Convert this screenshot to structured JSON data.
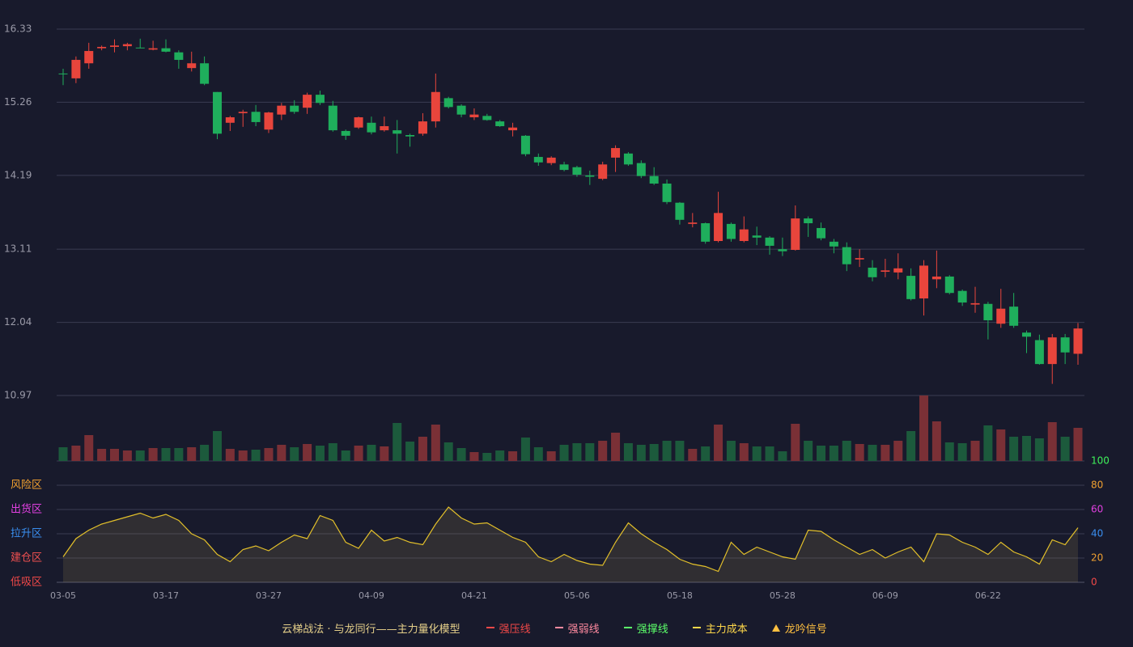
{
  "chart_data": {
    "type": "candlestick",
    "categories": [
      "03-05",
      null,
      null,
      null,
      null,
      null,
      null,
      null,
      "03-17",
      null,
      null,
      null,
      null,
      null,
      null,
      null,
      "03-27",
      null,
      null,
      null,
      null,
      null,
      null,
      null,
      "04-09",
      null,
      null,
      null,
      null,
      null,
      null,
      null,
      "04-21",
      null,
      null,
      null,
      null,
      null,
      null,
      null,
      "05-06",
      null,
      null,
      null,
      null,
      null,
      null,
      null,
      "05-18",
      null,
      null,
      null,
      null,
      null,
      null,
      null,
      "05-28",
      null,
      null,
      null,
      null,
      null,
      null,
      null,
      "06-09",
      null,
      null,
      null,
      null,
      null,
      null,
      null,
      "06-22",
      null,
      null,
      null,
      null,
      null,
      null,
      null
    ],
    "open": [
      15.68,
      15.61,
      15.83,
      16.05,
      16.07,
      16.08,
      16.06,
      16.03,
      16.05,
      15.99,
      15.76,
      15.83,
      15.41,
      14.96,
      15.1,
      15.12,
      14.86,
      15.08,
      15.21,
      15.18,
      15.37,
      15.21,
      14.84,
      14.89,
      14.96,
      14.85,
      14.85,
      14.78,
      14.8,
      14.98,
      15.32,
      15.21,
      15.04,
      15.06,
      14.98,
      14.85,
      14.77,
      14.46,
      14.37,
      14.35,
      14.31,
      14.19,
      14.14,
      14.45,
      14.51,
      14.37,
      14.18,
      14.07,
      13.79,
      13.48,
      13.49,
      13.23,
      13.48,
      13.23,
      13.31,
      13.28,
      13.11,
      13.1,
      13.56,
      13.42,
      13.22,
      13.14,
      12.96,
      12.84,
      12.78,
      12.77,
      12.72,
      12.39,
      12.67,
      12.71,
      12.5,
      12.3,
      12.31,
      12.02,
      12.27,
      11.89,
      11.78,
      11.43,
      11.82,
      11.58
    ],
    "close": [
      15.67,
      15.88,
      16.01,
      16.07,
      16.09,
      16.11,
      16.05,
      16.05,
      16.0,
      15.88,
      15.83,
      15.53,
      14.8,
      15.04,
      15.12,
      14.97,
      15.11,
      15.21,
      15.12,
      15.37,
      15.25,
      14.85,
      14.77,
      15.04,
      14.82,
      14.91,
      14.8,
      14.76,
      14.98,
      15.41,
      15.19,
      15.08,
      15.08,
      15.0,
      14.91,
      14.89,
      14.5,
      14.38,
      14.45,
      14.27,
      14.2,
      14.17,
      14.35,
      14.59,
      14.35,
      14.18,
      14.07,
      13.8,
      13.54,
      13.5,
      13.22,
      13.64,
      13.26,
      13.4,
      13.28,
      13.16,
      13.08,
      13.56,
      13.49,
      13.27,
      13.15,
      12.89,
      12.98,
      12.7,
      12.8,
      12.83,
      12.38,
      12.87,
      12.71,
      12.47,
      12.33,
      12.32,
      12.07,
      12.24,
      11.99,
      11.83,
      11.43,
      11.82,
      11.6,
      11.95
    ],
    "high": [
      15.75,
      15.93,
      16.13,
      16.09,
      16.18,
      16.13,
      16.19,
      16.16,
      16.18,
      16.02,
      16.0,
      15.93,
      15.41,
      15.06,
      15.15,
      15.22,
      15.12,
      15.25,
      15.29,
      15.4,
      15.43,
      15.28,
      14.86,
      15.05,
      15.05,
      15.05,
      15.0,
      14.8,
      15.1,
      15.68,
      15.34,
      15.23,
      15.17,
      15.09,
      15.0,
      14.96,
      14.78,
      14.51,
      14.47,
      14.39,
      14.33,
      14.26,
      14.39,
      14.63,
      14.53,
      14.41,
      14.31,
      14.13,
      13.8,
      13.64,
      13.5,
      13.95,
      13.5,
      13.59,
      13.44,
      13.3,
      13.28,
      13.75,
      13.59,
      13.5,
      13.26,
      13.21,
      13.11,
      12.95,
      12.97,
      13.05,
      12.83,
      12.95,
      13.09,
      12.73,
      12.52,
      12.56,
      12.34,
      12.53,
      12.47,
      11.92,
      11.86,
      11.87,
      11.87,
      12.03
    ],
    "low": [
      15.51,
      15.54,
      15.75,
      16.02,
      15.99,
      16.02,
      16.05,
      16.02,
      15.99,
      15.75,
      15.71,
      15.51,
      14.72,
      14.84,
      14.9,
      14.91,
      14.81,
      15.0,
      15.09,
      15.09,
      15.22,
      14.83,
      14.71,
      14.87,
      14.79,
      14.83,
      14.51,
      14.61,
      14.77,
      14.89,
      15.17,
      15.04,
      15.0,
      14.99,
      14.9,
      14.76,
      14.47,
      14.33,
      14.34,
      14.25,
      14.17,
      14.05,
      14.12,
      14.24,
      14.33,
      14.15,
      14.05,
      13.77,
      13.47,
      13.43,
      13.19,
      13.21,
      13.22,
      13.21,
      13.17,
      13.03,
      13.01,
      13.09,
      13.29,
      13.24,
      13.05,
      12.79,
      12.85,
      12.64,
      12.7,
      12.67,
      12.36,
      12.14,
      12.54,
      12.45,
      12.28,
      12.18,
      11.79,
      11.96,
      11.96,
      11.59,
      11.42,
      11.14,
      11.43,
      11.42
    ],
    "volume": [
      17,
      19,
      32,
      15,
      15,
      13,
      13,
      16,
      16,
      16,
      17,
      20,
      37,
      15,
      13,
      14,
      16,
      20,
      17,
      21,
      19,
      22,
      13,
      19,
      20,
      18,
      47,
      24,
      30,
      45,
      23,
      16,
      11,
      10,
      13,
      12,
      29,
      17,
      12,
      20,
      22,
      22,
      25,
      35,
      22,
      20,
      21,
      25,
      25,
      15,
      18,
      45,
      25,
      22,
      18,
      18,
      12,
      46,
      25,
      19,
      19,
      25,
      21,
      20,
      20,
      25,
      37,
      81,
      49,
      23,
      22,
      25,
      44,
      39,
      30,
      31,
      28,
      48,
      30,
      41
    ],
    "up_color": "#e8453c",
    "down_color": "#1fae5c",
    "up_volume_color": "#7a3036",
    "down_volume_color": "#1c5a3c",
    "ylim": [
      10.97,
      16.33
    ],
    "yticks": [
      10.97,
      12.04,
      13.11,
      14.19,
      15.26,
      16.33
    ],
    "grid": true,
    "indicator": {
      "values": [
        21,
        36,
        43,
        48,
        51,
        54,
        57,
        53,
        56,
        51,
        40,
        35,
        23,
        17,
        27,
        30,
        26,
        33,
        39,
        36,
        55,
        51,
        33,
        28,
        43,
        34,
        37,
        33,
        31,
        48,
        62,
        53,
        48,
        49,
        43,
        37,
        33,
        21,
        17,
        23,
        18,
        15,
        14,
        33,
        49,
        40,
        33,
        27,
        19,
        15,
        13,
        9,
        33,
        23,
        29,
        25,
        21,
        19,
        43,
        42,
        35,
        29,
        23,
        27,
        20,
        25,
        29,
        17,
        40,
        39,
        33,
        29,
        23,
        33,
        25,
        21,
        15,
        35,
        31,
        45
      ],
      "color": "#e3c02a",
      "ylim": [
        0,
        100
      ],
      "yticks": [
        0,
        20,
        40,
        60,
        80,
        100
      ],
      "ytick_colors": [
        "#f04848",
        "#f0a030",
        "#3a8ff0",
        "#e040e0",
        "#f0a030",
        "#3ff05a"
      ],
      "zones": [
        {
          "label": "低吸区",
          "color": "#f04848"
        },
        {
          "label": "建仓区",
          "color": "#f05050"
        },
        {
          "label": "拉升区",
          "color": "#3a8ff0"
        },
        {
          "label": "出货区",
          "color": "#e040e0"
        },
        {
          "label": "风险区",
          "color": "#f0a030"
        }
      ]
    },
    "legend": {
      "title": "云梯战法 · 与龙同行——主力量化模型",
      "items": [
        {
          "name": "强压线",
          "color": "#f04848",
          "style": "solid"
        },
        {
          "name": "强弱线",
          "color": "#ff8aa0",
          "style": "dashed"
        },
        {
          "name": "强撑线",
          "color": "#5cff6a",
          "style": "solid"
        },
        {
          "name": "主力成本",
          "color": "#ffd84a",
          "style": "dashed"
        },
        {
          "name": "龙吟信号",
          "color": "#ffc040",
          "style": "triangle"
        }
      ]
    }
  }
}
